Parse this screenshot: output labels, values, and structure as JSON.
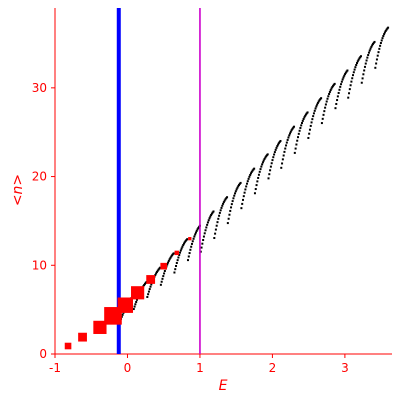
{
  "chart_data": {
    "type": "scatter",
    "xlabel": "E",
    "ylabel": "<n>",
    "xlim": [
      -1,
      3.65
    ],
    "ylim": [
      0,
      39
    ],
    "x_ticks": [
      -1,
      0,
      1,
      2,
      3
    ],
    "y_ticks": [
      0,
      10,
      20,
      30
    ],
    "grid": false,
    "vertical_lines": [
      {
        "x": -0.12,
        "color": "#0000ff",
        "role": "thick"
      },
      {
        "x": 1.0,
        "color": "#cc00cc",
        "role": "thin"
      }
    ],
    "red_points": [
      {
        "x": -0.82,
        "y": 0.9,
        "size": 3
      },
      {
        "x": -0.62,
        "y": 1.9,
        "size": 4
      },
      {
        "x": -0.38,
        "y": 3.0,
        "size": 6
      },
      {
        "x": -0.2,
        "y": 4.3,
        "size": 8
      },
      {
        "x": -0.03,
        "y": 5.5,
        "size": 7
      },
      {
        "x": 0.14,
        "y": 6.9,
        "size": 6
      },
      {
        "x": 0.32,
        "y": 8.4,
        "size": 4
      },
      {
        "x": 0.5,
        "y": 9.9,
        "size": 3
      },
      {
        "x": 0.68,
        "y": 11.4,
        "size": 2
      },
      {
        "x": 0.86,
        "y": 13.0,
        "size": 1.5
      }
    ],
    "black_series": {
      "start_x": -0.1,
      "end_x": 3.6,
      "base_y_start": 5.0,
      "slope": 8.6,
      "tooth_period": 0.185,
      "tooth_amplitude": 3.2
    },
    "colors": {
      "axis": "#ff0000",
      "tick_labels": "#ff0000",
      "axis_titles": "#ff0000",
      "markers_red": "#ff0000",
      "markers_black": "#000000"
    }
  }
}
